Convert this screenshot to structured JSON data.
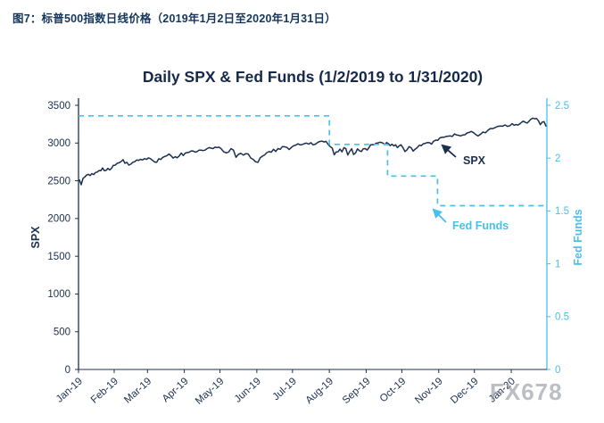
{
  "caption": "图7：标普500指数日线价格（2019年1月2日至2020年1月31日）",
  "watermark": "FX678",
  "colors": {
    "navy": "#1b2f4e",
    "cyan": "#49c0e8",
    "title": "#16294a",
    "caption": "#15365a",
    "watermark": "#8f969c"
  },
  "chart_data": {
    "type": "line",
    "title": "Daily SPX & Fed Funds (1/2/2019 to 1/31/2020)",
    "xlabel": "",
    "ylabel_left": "SPX",
    "ylabel_right": "Fed Funds",
    "grid": false,
    "legend_position": "none",
    "y_left": {
      "min": 0,
      "max": 3500,
      "ticks": [
        "0",
        "500",
        "1000",
        "1500",
        "2000",
        "2500",
        "3000",
        "3500"
      ]
    },
    "y_right": {
      "min": 0,
      "max": 2.5,
      "ticks": [
        "0",
        "0.5",
        "1",
        "1.5",
        "2",
        "2.5"
      ]
    },
    "x_ticks": [
      "Jan-19",
      "Feb-19",
      "Mar-19",
      "Apr-19",
      "May-19",
      "Jun-19",
      "Jul-19",
      "Aug-19",
      "Sep-19",
      "Oct-19",
      "Nov-19",
      "Dec-19",
      "Jan-20"
    ],
    "total_days": 394,
    "month_starts": [
      0,
      30,
      58,
      89,
      119,
      150,
      180,
      211,
      242,
      272,
      303,
      333,
      364
    ],
    "series": [
      {
        "name": "SPX",
        "axis": "left",
        "color": "#1b2f4e",
        "style": "solid",
        "monthly_values": [
          [
            2510,
            2448,
            2532,
            2550,
            2575,
            2585,
            2570,
            2596,
            2583,
            2610,
            2616,
            2636,
            2633,
            2670,
            2632,
            2639,
            2664,
            2643,
            2665,
            2704
          ],
          [
            2707,
            2732,
            2738,
            2754,
            2780,
            2731,
            2744,
            2708,
            2720,
            2745,
            2753,
            2775,
            2771,
            2785,
            2775,
            2793,
            2784
          ],
          [
            2804,
            2793,
            2771,
            2749,
            2744,
            2791,
            2784,
            2811,
            2823,
            2833,
            2854,
            2832,
            2801,
            2819,
            2805,
            2829,
            2867,
            2834
          ],
          [
            2867,
            2873,
            2879,
            2896,
            2893,
            2879,
            2888,
            2907,
            2905,
            2900,
            2907,
            2927,
            2940,
            2933,
            2927,
            2946,
            2939,
            2945
          ],
          [
            2924,
            2884,
            2870,
            2880,
            2926,
            2907,
            2811,
            2850,
            2864,
            2840,
            2859,
            2856,
            2802,
            2783,
            2752
          ],
          [
            2744,
            2803,
            2826,
            2843,
            2873,
            2886,
            2879,
            2917,
            2889,
            2926,
            2917,
            2954,
            2950,
            2942,
            2913,
            2942
          ],
          [
            2964,
            2973,
            2990,
            2975,
            2980,
            2993,
            2999,
            2986,
            3004,
            2976,
            2985,
            3006,
            3020,
            3026,
            3014,
            3022,
            2980
          ],
          [
            2953,
            2932,
            2845,
            2882,
            2884,
            2919,
            2883,
            2939,
            2926,
            2841,
            2889,
            2924,
            2847,
            2869,
            2923,
            2898,
            2888,
            2924,
            2926
          ],
          [
            2906,
            2938,
            2976,
            2979,
            2979,
            2997,
            3001,
            3010,
            3008,
            2998,
            2978,
            3007,
            2992,
            2966,
            2985,
            2962,
            2977,
            2940,
            2962,
            2977
          ],
          [
            2940,
            2888,
            2910,
            2952,
            2938,
            2893,
            2919,
            2938,
            2970,
            2966,
            2990,
            2996,
            3007,
            3004,
            2986,
            3023,
            3039,
            3037
          ],
          [
            3067,
            3075,
            3077,
            3087,
            3091,
            3094,
            3087,
            3120,
            3108,
            3103,
            3094,
            3108,
            3110,
            3134,
            3141,
            3153,
            3141
          ],
          [
            3114,
            3093,
            3117,
            3146,
            3136,
            3169,
            3192,
            3191,
            3205,
            3221,
            3224,
            3223,
            3240,
            3221,
            3230
          ],
          [
            3258,
            3235,
            3246,
            3237,
            3253,
            3275,
            3289,
            3274,
            3265,
            3289,
            3317,
            3330,
            3321,
            3325,
            3295,
            3243,
            3276,
            3284,
            3226
          ]
        ]
      },
      {
        "name": "Fed Funds",
        "axis": "right",
        "color": "#49c0e8",
        "style": "dashed",
        "steps": [
          {
            "start_day": 0,
            "end_day": 211,
            "rate": 2.4
          },
          {
            "start_day": 211,
            "end_day": 260,
            "rate": 2.13
          },
          {
            "start_day": 260,
            "end_day": 302,
            "rate": 1.83
          },
          {
            "start_day": 302,
            "end_day": 394,
            "rate": 1.55
          }
        ]
      }
    ],
    "annotations": [
      {
        "text": "SPX",
        "color": "navy",
        "tx": 519,
        "ty": 184,
        "ax1": 511,
        "ay1": 176,
        "ax2": 496,
        "ay2": 163
      },
      {
        "text": "Fed Funds",
        "color": "cyan",
        "tx": 507,
        "ty": 257,
        "ax1": 500,
        "ay1": 249,
        "ax2": 486,
        "ay2": 235
      }
    ]
  }
}
